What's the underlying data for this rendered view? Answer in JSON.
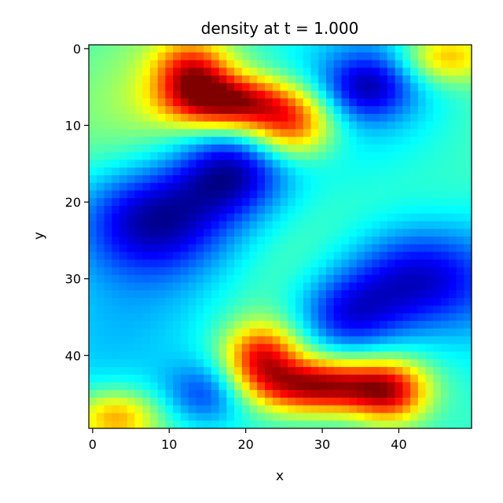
{
  "chart_data": {
    "type": "heatmap",
    "title": "density at t = 1.000",
    "xlabel": "x",
    "ylabel": "y",
    "nx": 50,
    "ny": 50,
    "xlim": [
      -0.5,
      49.5
    ],
    "ylim": [
      49.5,
      -0.5
    ],
    "x_ticks": [
      0,
      10,
      20,
      30,
      40
    ],
    "y_ticks": [
      0,
      10,
      20,
      30,
      40
    ],
    "y_inverted": true,
    "colormap": "jet",
    "value_range": [
      0,
      1
    ],
    "colorbar": false,
    "grid": false,
    "features": [
      {
        "name": "upper-right red band",
        "x": 18,
        "y": 7,
        "value": 0.95,
        "sx": 5.5,
        "sy": 2.5
      },
      {
        "name": "upper-left orange",
        "x": 13,
        "y": 3,
        "value": 0.8,
        "sx": 3.5,
        "sy": 3
      },
      {
        "name": "upper-middle red",
        "x": 26,
        "y": 10,
        "value": 0.82,
        "sx": 4,
        "sy": 3
      },
      {
        "name": "lower red band",
        "x": 30,
        "y": 44,
        "value": 0.95,
        "sx": 6.5,
        "sy": 2.5
      },
      {
        "name": "lower-left orange",
        "x": 22,
        "y": 40,
        "value": 0.82,
        "sx": 3.5,
        "sy": 3
      },
      {
        "name": "lower-right orange",
        "x": 39,
        "y": 45,
        "value": 0.78,
        "sx": 3.5,
        "sy": 3
      },
      {
        "name": "left blue band",
        "x": 8,
        "y": 22,
        "value": 0.05,
        "sx": 7,
        "sy": 5
      },
      {
        "name": "left blue upper",
        "x": 18,
        "y": 16,
        "value": 0.08,
        "sx": 5,
        "sy": 4
      },
      {
        "name": "right blue band",
        "x": 42,
        "y": 30,
        "value": 0.03,
        "sx": 7,
        "sy": 5
      },
      {
        "name": "right blue lower",
        "x": 33,
        "y": 35,
        "value": 0.1,
        "sx": 5,
        "sy": 4
      },
      {
        "name": "upper-right blue blob",
        "x": 36,
        "y": 5,
        "value": 0.15,
        "sx": 4,
        "sy": 3
      },
      {
        "name": "lower-left blue blob",
        "x": 15,
        "y": 45,
        "value": 0.18,
        "sx": 4,
        "sy": 3
      },
      {
        "name": "top-right yellow",
        "x": 46,
        "y": 1,
        "value": 0.72,
        "sx": 4,
        "sy": 2.5
      },
      {
        "name": "bottom-left yellow",
        "x": 3,
        "y": 48,
        "value": 0.72,
        "sx": 4,
        "sy": 2.5
      }
    ]
  }
}
